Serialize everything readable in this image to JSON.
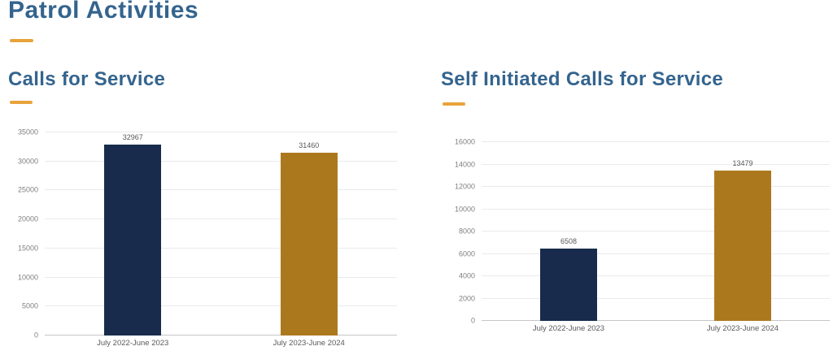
{
  "page": {
    "title": "Patrol Activities"
  },
  "accent": {
    "heading_color": "#34648E",
    "underline_color": "#E8A33C"
  },
  "chart_data": [
    {
      "type": "bar",
      "title": "Calls for Service",
      "categories": [
        "July 2022-June 2023",
        "July 2023-June 2024"
      ],
      "values": [
        32967,
        31460
      ],
      "value_labels": [
        "32967",
        "31460"
      ],
      "bar_colors": [
        "#182B4D",
        "#AC781E"
      ],
      "ylim": [
        0,
        35000
      ],
      "ytick_step": 5000,
      "ytick_labels": [
        "0",
        "5000",
        "10000",
        "15000",
        "20000",
        "25000",
        "30000",
        "35000"
      ],
      "grid": "horizontal",
      "legend": "none",
      "xlabel": "",
      "ylabel": ""
    },
    {
      "type": "bar",
      "title": "Self Initiated Calls for Service",
      "categories": [
        "July 2022-June 2023",
        "July 2023-June 2024"
      ],
      "values": [
        6508,
        13479
      ],
      "value_labels": [
        "6508",
        "13479"
      ],
      "bar_colors": [
        "#182B4D",
        "#AC781E"
      ],
      "ylim": [
        0,
        16000
      ],
      "ytick_step": 2000,
      "ytick_labels": [
        "0",
        "2000",
        "4000",
        "6000",
        "8000",
        "10000",
        "12000",
        "14000",
        "16000"
      ],
      "grid": "horizontal",
      "legend": "none",
      "xlabel": "",
      "ylabel": ""
    }
  ]
}
